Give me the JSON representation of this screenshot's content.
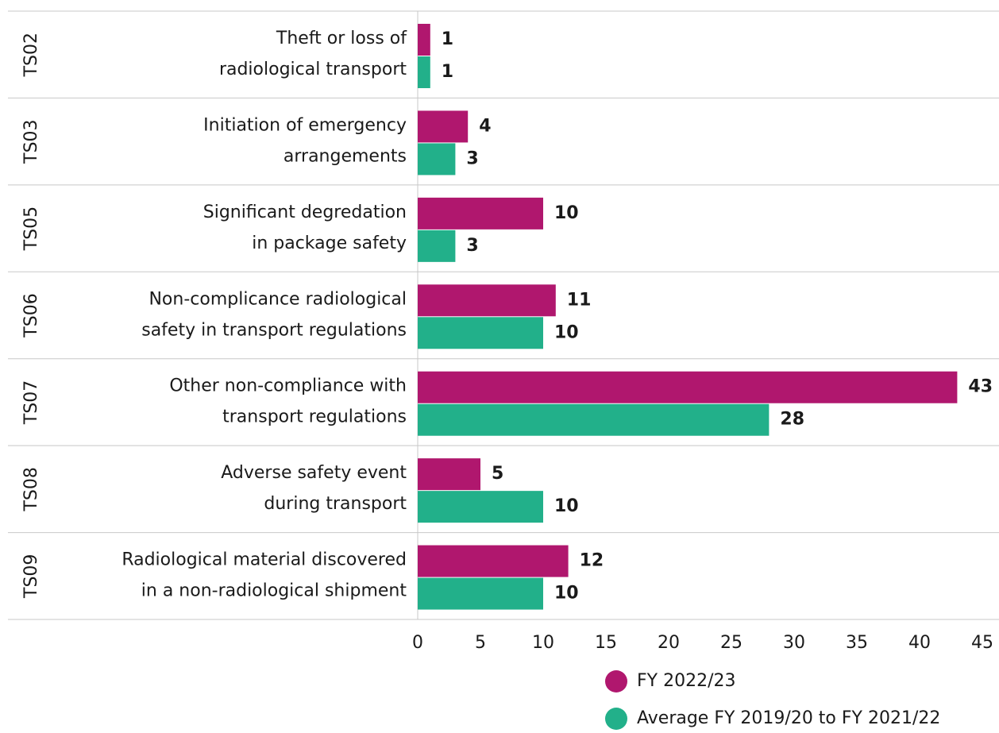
{
  "chart_data": {
    "type": "bar",
    "orientation": "horizontal",
    "groups": [
      "TS02",
      "TS03",
      "TS05",
      "TS06",
      "TS07",
      "TS08",
      "TS09"
    ],
    "categories": [
      [
        "Theft or loss of",
        "radiological transport"
      ],
      [
        "Initiation of emergency",
        "arrangements"
      ],
      [
        "Significant degredation",
        "in package safety"
      ],
      [
        "Non-complicance radiological",
        "safety in transport regulations"
      ],
      [
        "Other non-compliance with",
        "transport regulations"
      ],
      [
        "Adverse safety event",
        "during transport"
      ],
      [
        "Radiological material discovered",
        "in a non-radiological shipment"
      ]
    ],
    "series": [
      {
        "name": "FY 2022/23",
        "color": "#b0176e",
        "values": [
          1,
          4,
          10,
          11,
          43,
          5,
          12
        ]
      },
      {
        "name": "Average FY 2019/20 to FY 2021/22",
        "color": "#22b08a",
        "values": [
          1,
          3,
          3,
          10,
          28,
          10,
          10
        ]
      }
    ],
    "xlim": [
      0,
      45
    ],
    "xticks": [
      0,
      5,
      10,
      15,
      20,
      25,
      30,
      35,
      40,
      45
    ]
  }
}
